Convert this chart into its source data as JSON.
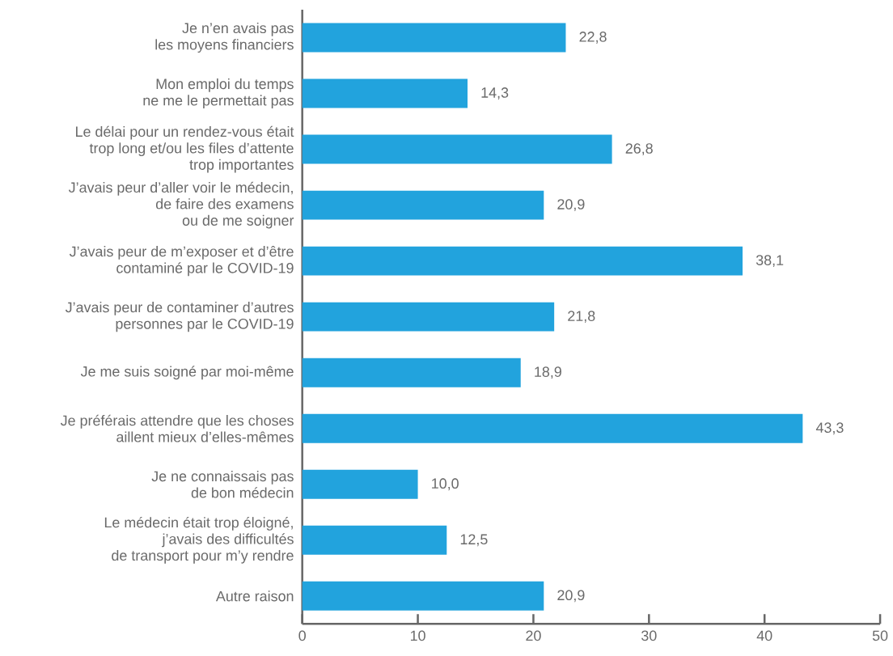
{
  "chart_data": {
    "type": "bar",
    "orientation": "horizontal",
    "color": "#22a3dd",
    "categories": [
      "Je n’en avais pas\nles moyens financiers",
      "Mon emploi du temps\nne me le permettait pas",
      "Le délai pour un rendez-vous était\ntrop long et/ou  les files d’attente\ntrop importantes",
      "J’avais peur d’aller voir le médecin,\nde faire des examens\nou de me soigner",
      "J’avais peur de m’exposer et d’être\ncontaminé par le COVID-19",
      "J’avais peur de contaminer d’autres\npersonnes par le COVID-19",
      "Je me suis soigné par moi-même",
      "Je préférais attendre que les choses\naillent mieux d’elles-mêmes",
      "Je ne connaissais pas\nde bon médecin",
      "Le médecin était trop éloigné,\nj’avais des difficultés\nde transport pour m’y rendre",
      "Autre raison"
    ],
    "values": [
      22.8,
      14.3,
      26.8,
      20.9,
      38.1,
      21.8,
      18.9,
      43.3,
      10.0,
      12.5,
      20.9
    ],
    "value_labels": [
      "22,8",
      "14,3",
      "26,8",
      "20,9",
      "38,1",
      "21,8",
      "18,9",
      "43,3",
      "10,0",
      "12,5",
      "20,9"
    ],
    "xlim": [
      0,
      50
    ],
    "xticks": [
      0,
      10,
      20,
      30,
      40,
      50
    ]
  }
}
